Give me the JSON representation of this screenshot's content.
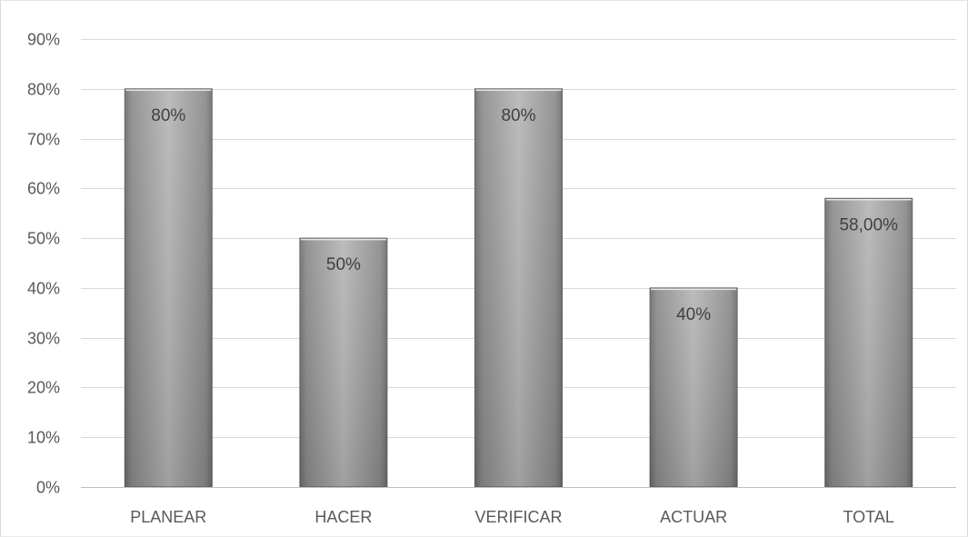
{
  "chart_data": {
    "type": "bar",
    "categories": [
      "PLANEAR",
      "HACER",
      "VERIFICAR",
      "ACTUAR",
      "TOTAL"
    ],
    "values": [
      0.8,
      0.5,
      0.8,
      0.4,
      0.58
    ],
    "data_labels": [
      "80%",
      "50%",
      "80%",
      "40%",
      "58,00%"
    ],
    "ylim": [
      0,
      0.9
    ],
    "yticks": [
      0,
      0.1,
      0.2,
      0.3,
      0.4,
      0.5,
      0.6,
      0.7,
      0.8,
      0.9
    ],
    "ytick_labels": [
      "0%",
      "10%",
      "20%",
      "30%",
      "40%",
      "50%",
      "60%",
      "70%",
      "80%",
      "90%"
    ],
    "grid": true,
    "legend": "none",
    "colors": {
      "bar_dark": "#7a7a7a",
      "bar_light": "#b3b3b3",
      "grid": "#d9d9d9",
      "axis": "#bfbfbf"
    }
  }
}
